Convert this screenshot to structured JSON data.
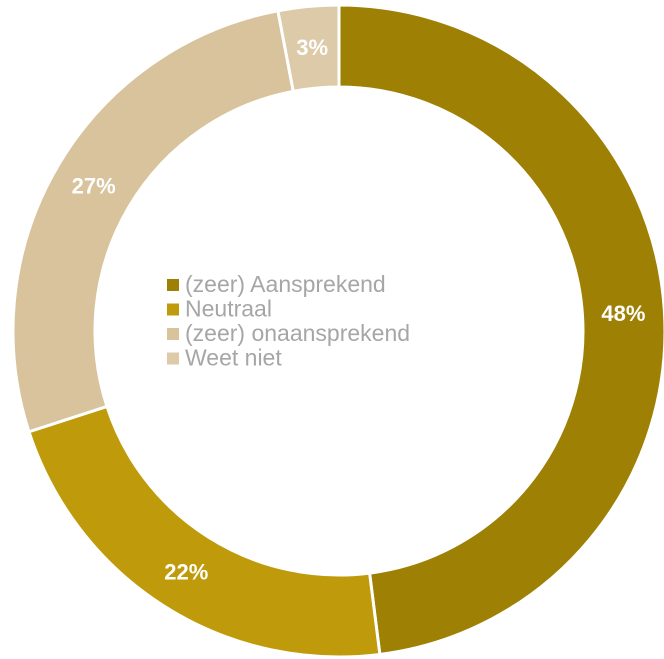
{
  "chart_data": {
    "type": "donut",
    "categories": [
      "(zeer) Aansprekend",
      "Neutraal",
      "(zeer) onaansprekend",
      "Weet niet"
    ],
    "values": [
      48,
      22,
      27,
      3
    ],
    "value_labels": [
      "48%",
      "22%",
      "27%",
      "3%"
    ],
    "colors": [
      "#9e8005",
      "#bf9b0b",
      "#d8c39d",
      "#dccaa9"
    ],
    "legend": "center"
  }
}
